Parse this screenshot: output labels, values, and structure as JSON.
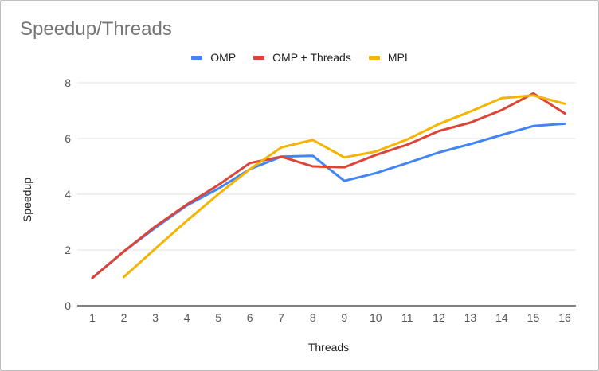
{
  "chart_data": {
    "type": "line",
    "title": "Speedup/Threads",
    "xlabel": "Threads",
    "ylabel": "Speedup",
    "x": [
      1,
      2,
      3,
      4,
      5,
      6,
      7,
      8,
      9,
      10,
      11,
      12,
      13,
      14,
      15,
      16
    ],
    "xticks": [
      "1",
      "2",
      "3",
      "4",
      "5",
      "6",
      "7",
      "8",
      "9",
      "10",
      "11",
      "12",
      "13",
      "14",
      "15",
      "16"
    ],
    "ylim": [
      0,
      8
    ],
    "yticks": [
      "0",
      "2",
      "4",
      "6",
      "8"
    ],
    "grid": true,
    "legend_position": "top-center",
    "series": [
      {
        "name": "OMP",
        "color": "#4285F4",
        "values": [
          1.0,
          1.95,
          2.8,
          3.6,
          4.2,
          4.9,
          5.35,
          5.38,
          4.48,
          4.76,
          5.12,
          5.5,
          5.8,
          6.13,
          6.45,
          6.53
        ]
      },
      {
        "name": "OMP + Threads",
        "color": "#DB4437",
        "values": [
          1.0,
          1.95,
          2.85,
          3.63,
          4.33,
          5.12,
          5.35,
          5.0,
          4.97,
          5.41,
          5.78,
          6.27,
          6.57,
          7.02,
          7.62,
          6.9
        ]
      },
      {
        "name": "MPI",
        "color": "#F4B400",
        "values": [
          null,
          1.03,
          2.05,
          3.05,
          4.0,
          4.9,
          5.68,
          5.95,
          5.32,
          5.53,
          5.97,
          6.52,
          6.97,
          7.45,
          7.55,
          7.25
        ]
      }
    ]
  }
}
